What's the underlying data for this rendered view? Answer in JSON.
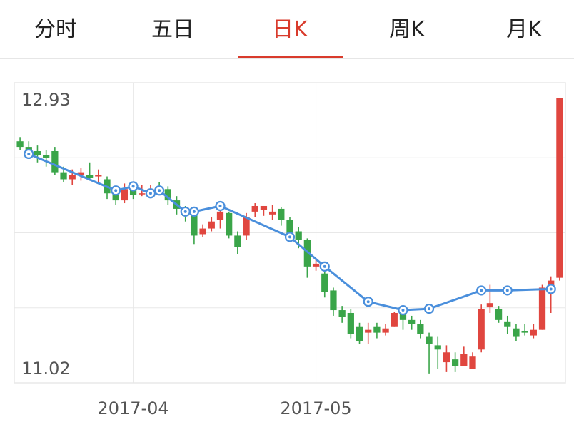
{
  "tabs": [
    {
      "label": "分时",
      "active": false
    },
    {
      "label": "五日",
      "active": false
    },
    {
      "label": "日K",
      "active": true
    },
    {
      "label": "周K",
      "active": false
    },
    {
      "label": "月K",
      "active": false
    }
  ],
  "colors": {
    "up": "#e0463f",
    "down": "#3aa549",
    "ma_line": "#4a8fdc",
    "active_tab": "#d93b2c",
    "grid": "#e8e8e8"
  },
  "chart_data": {
    "type": "candlestick",
    "y_max_label": "12.93",
    "y_min_label": "11.02",
    "ylim": [
      11.02,
      12.93
    ],
    "x_tick_labels": [
      {
        "label": "2017-04",
        "index": 13
      },
      {
        "label": "2017-05",
        "index": 34
      }
    ],
    "candles": [
      [
        12.62,
        12.58,
        12.65,
        12.56
      ],
      [
        12.58,
        12.56,
        12.62,
        12.5
      ],
      [
        12.55,
        12.52,
        12.59,
        12.47
      ],
      [
        12.52,
        12.5,
        12.56,
        12.44
      ],
      [
        12.55,
        12.4,
        12.58,
        12.38
      ],
      [
        12.4,
        12.35,
        12.44,
        12.33
      ],
      [
        12.35,
        12.38,
        12.42,
        12.31
      ],
      [
        12.38,
        12.4,
        12.43,
        12.34
      ],
      [
        12.38,
        12.36,
        12.47,
        12.34
      ],
      [
        12.37,
        12.38,
        12.42,
        12.33
      ],
      [
        12.35,
        12.25,
        12.37,
        12.21
      ],
      [
        12.25,
        12.2,
        12.28,
        12.17
      ],
      [
        12.2,
        12.28,
        12.32,
        12.18
      ],
      [
        12.3,
        12.24,
        12.32,
        12.21
      ],
      [
        12.25,
        12.25,
        12.31,
        12.23
      ],
      [
        12.26,
        12.28,
        12.31,
        12.24
      ],
      [
        12.28,
        12.27,
        12.33,
        12.25
      ],
      [
        12.28,
        12.2,
        12.3,
        12.17
      ],
      [
        12.2,
        12.14,
        12.23,
        12.1
      ],
      [
        12.14,
        12.09,
        12.16,
        12.05
      ],
      [
        12.1,
        11.95,
        12.14,
        11.89
      ],
      [
        11.96,
        12.0,
        12.03,
        11.94
      ],
      [
        12.0,
        12.05,
        12.08,
        11.98
      ],
      [
        12.06,
        12.12,
        12.14,
        12.0
      ],
      [
        12.11,
        11.95,
        12.12,
        11.93
      ],
      [
        11.95,
        11.87,
        11.98,
        11.82
      ],
      [
        11.95,
        12.08,
        12.11,
        11.92
      ],
      [
        12.12,
        12.16,
        12.18,
        12.08
      ],
      [
        12.13,
        12.16,
        12.16,
        12.09
      ],
      [
        12.1,
        12.12,
        12.17,
        12.06
      ],
      [
        12.14,
        12.06,
        12.15,
        12.02
      ],
      [
        12.06,
        11.96,
        12.08,
        11.93
      ],
      [
        11.98,
        11.92,
        12.01,
        11.86
      ],
      [
        11.92,
        11.73,
        11.93,
        11.65
      ],
      [
        11.73,
        11.75,
        11.78,
        11.7
      ],
      [
        11.68,
        11.55,
        11.7,
        11.51
      ],
      [
        11.56,
        11.42,
        11.58,
        11.38
      ],
      [
        11.42,
        11.37,
        11.45,
        11.33
      ],
      [
        11.4,
        11.25,
        11.43,
        11.22
      ],
      [
        11.3,
        11.2,
        11.33,
        11.18
      ],
      [
        11.26,
        11.28,
        11.33,
        11.18
      ],
      [
        11.3,
        11.26,
        11.33,
        11.22
      ],
      [
        11.26,
        11.29,
        11.32,
        11.24
      ],
      [
        11.3,
        11.4,
        11.41,
        11.3
      ],
      [
        11.42,
        11.35,
        11.44,
        11.28
      ],
      [
        11.35,
        11.32,
        11.38,
        11.28
      ],
      [
        11.32,
        11.25,
        11.35,
        11.22
      ],
      [
        11.23,
        11.18,
        11.26,
        10.97
      ],
      [
        11.17,
        11.14,
        11.23,
        11.0
      ],
      [
        11.05,
        11.12,
        11.17,
        10.98
      ],
      [
        11.07,
        11.02,
        11.12,
        10.98
      ],
      [
        11.02,
        11.11,
        11.16,
        11.02
      ],
      [
        11.0,
        11.09,
        11.12,
        11.0
      ],
      [
        11.14,
        11.43,
        11.46,
        11.12
      ],
      [
        11.44,
        11.47,
        11.6,
        11.4
      ],
      [
        11.43,
        11.35,
        11.45,
        11.33
      ],
      [
        11.34,
        11.3,
        11.38,
        11.25
      ],
      [
        11.29,
        11.23,
        11.32,
        11.2
      ],
      [
        11.27,
        11.26,
        11.32,
        11.24
      ],
      [
        11.24,
        11.28,
        11.32,
        11.22
      ],
      [
        11.28,
        11.58,
        11.6,
        11.28
      ],
      [
        11.58,
        11.63,
        11.66,
        11.4
      ],
      [
        11.65,
        12.93,
        12.93,
        11.63
      ]
    ],
    "ma_line": [
      [
        1,
        12.53
      ],
      [
        11,
        12.27
      ],
      [
        13,
        12.3
      ],
      [
        15,
        12.25
      ],
      [
        16,
        12.27
      ],
      [
        19,
        12.12
      ],
      [
        20,
        12.12
      ],
      [
        23,
        12.16
      ],
      [
        31,
        11.94
      ],
      [
        35,
        11.73
      ],
      [
        40,
        11.48
      ],
      [
        44,
        11.42
      ],
      [
        47,
        11.43
      ],
      [
        53,
        11.56
      ],
      [
        56,
        11.56
      ],
      [
        61,
        11.57
      ]
    ]
  }
}
